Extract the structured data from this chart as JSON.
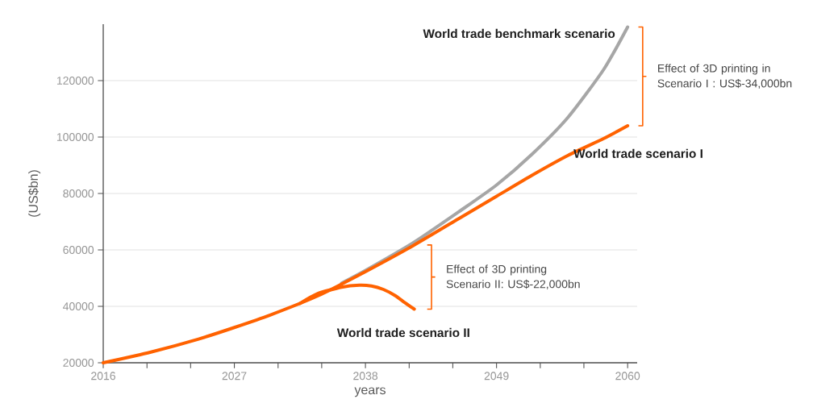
{
  "chart_data": {
    "type": "line",
    "xlabel": "years",
    "ylabel": "(US$bn)",
    "xlim": [
      2016,
      2060.8
    ],
    "ylim": [
      20000,
      140000
    ],
    "xticks": [
      2016,
      {
        "value": 2019.67,
        "label": null
      },
      {
        "value": 2023.33,
        "label": null
      },
      2027,
      {
        "value": 2030.67,
        "label": null
      },
      {
        "value": 2034.33,
        "label": null
      },
      2038,
      {
        "value": 2041.67,
        "label": null
      },
      {
        "value": 2045.33,
        "label": null
      },
      2049,
      {
        "value": 2052.67,
        "label": null
      },
      {
        "value": 2056.33,
        "label": null
      },
      2060
    ],
    "yticks": [
      20000,
      40000,
      60000,
      80000,
      100000,
      120000
    ],
    "grid": "y",
    "legend": false,
    "marker": "none",
    "line_style": "solid",
    "series": [
      {
        "name": "World trade benchmark scenario",
        "color": "#a6a6a6",
        "x": [
          2036,
          2038,
          2042,
          2046,
          2049,
          2052,
          2055,
          2058,
          2060
        ],
        "values": [
          48200,
          52700,
          62500,
          74000,
          83000,
          94000,
          107000,
          124000,
          139000
        ]
      },
      {
        "name": "World trade scenario I",
        "color": "#ff6200",
        "x": [
          2016,
          2020,
          2024,
          2027,
          2030,
          2034,
          2038,
          2042,
          2046,
          2049,
          2052,
          2055,
          2058,
          2060
        ],
        "values": [
          20000,
          23800,
          28400,
          32500,
          36900,
          43700,
          52300,
          61500,
          71500,
          79000,
          86500,
          93500,
          99500,
          104000
        ]
      },
      {
        "name": "World trade scenario II",
        "color": "#ff6200",
        "x": [
          2032.5,
          2034,
          2036,
          2037.5,
          2038.5,
          2039.5,
          2040.5,
          2041.3,
          2042.1
        ],
        "values": [
          41000,
          44500,
          46800,
          47500,
          47200,
          46000,
          43800,
          41300,
          39000
        ]
      }
    ],
    "annotations": [
      "Effect of 3D printing in Scenario I : US$-34,000bn",
      "Effect of 3D printing Scenario II: US$-22,000bn"
    ]
  }
}
